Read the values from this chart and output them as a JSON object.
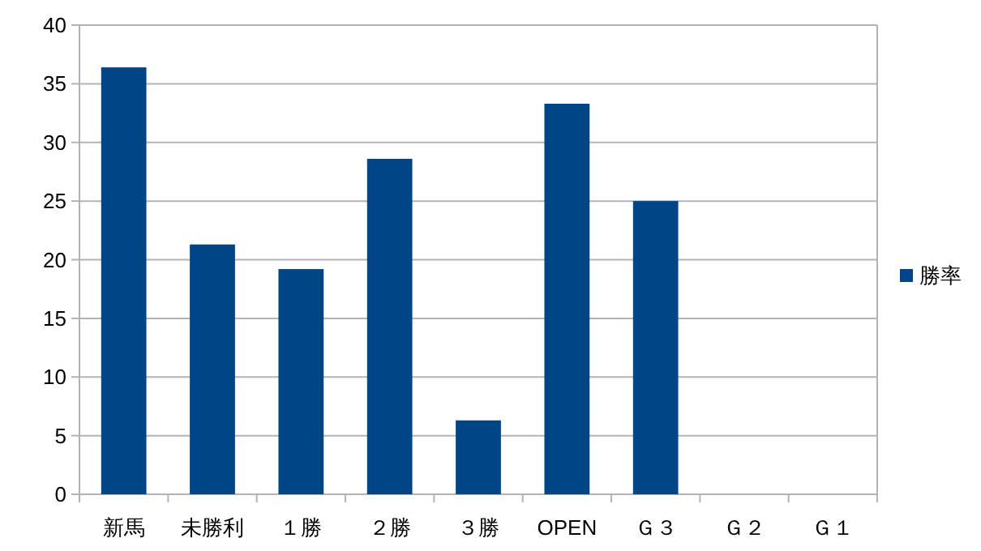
{
  "chart_data": {
    "type": "bar",
    "categories": [
      "新馬",
      "未勝利",
      "１勝",
      "２勝",
      "３勝",
      "OPEN",
      "Ｇ３",
      "Ｇ２",
      "Ｇ１"
    ],
    "series": [
      {
        "name": "勝率",
        "color": "#004586",
        "values": [
          36.4,
          21.3,
          19.2,
          28.6,
          6.3,
          33.3,
          25.0,
          0,
          0
        ]
      }
    ],
    "ylim": [
      0,
      40
    ],
    "yticks": [
      0,
      5,
      10,
      15,
      20,
      25,
      30,
      35,
      40
    ],
    "grid": "y",
    "legend": "right"
  }
}
